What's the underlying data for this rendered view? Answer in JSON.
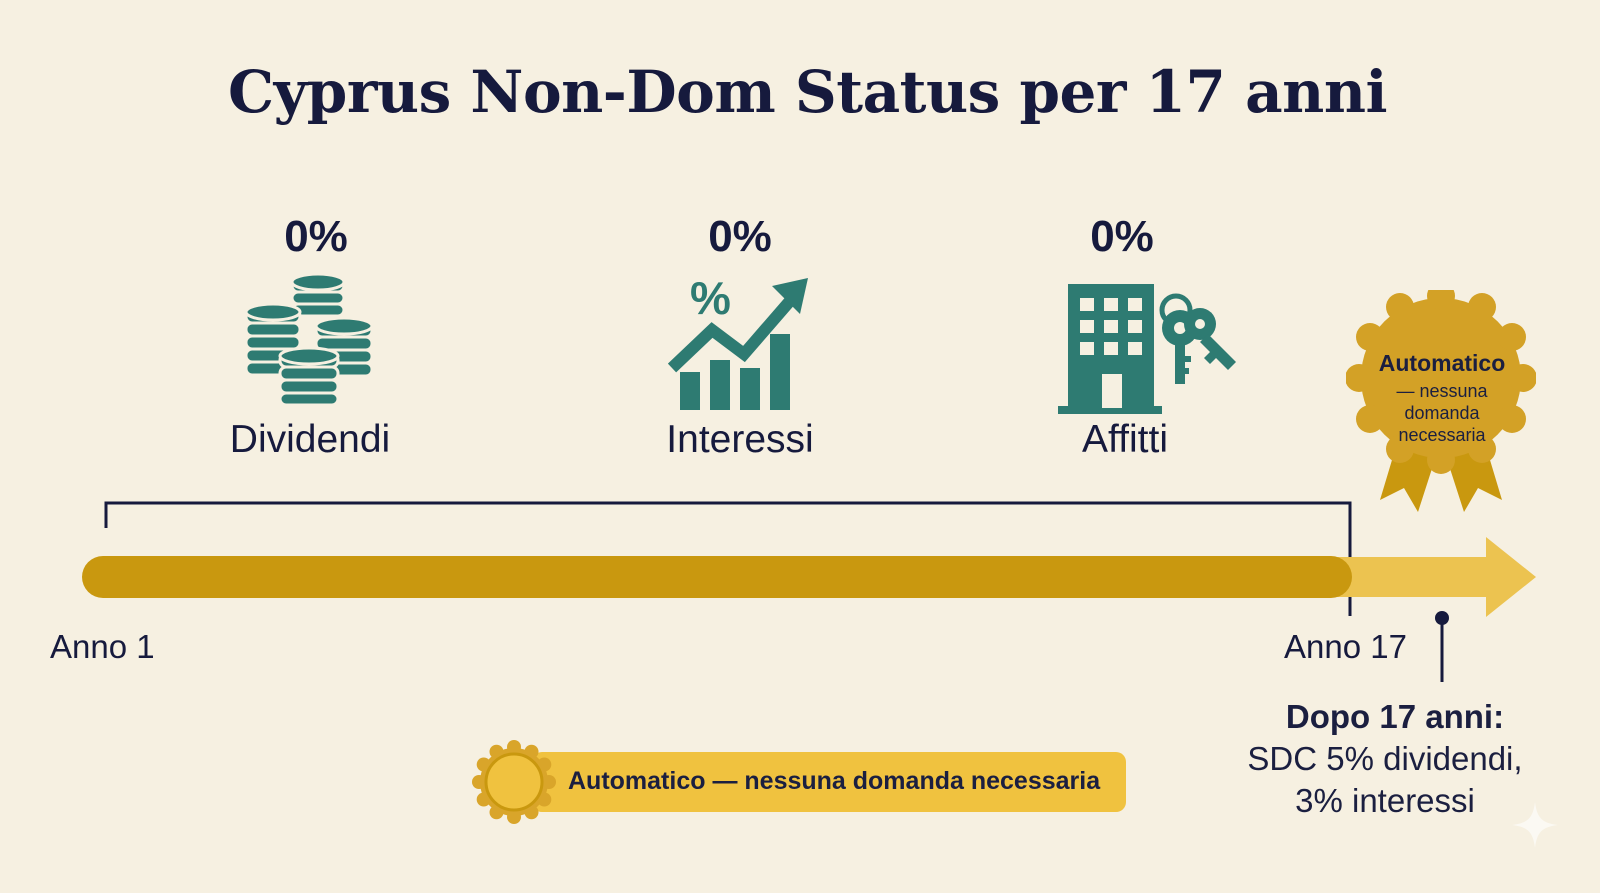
{
  "title": "Cyprus Non-Dom Status per 17 anni",
  "categories": [
    {
      "rate": "0%",
      "label": "Dividendi",
      "icon": "coin-stack-icon"
    },
    {
      "rate": "0%",
      "label": "Interessi",
      "icon": "growth-chart-icon"
    },
    {
      "rate": "0%",
      "label": "Affitti",
      "icon": "building-key-icon"
    }
  ],
  "timeline": {
    "start_label": "Anno 1",
    "end_label": "Anno 17"
  },
  "after": {
    "title": "Dopo 17 anni:",
    "line1": "SDC 5% dividendi,",
    "line2": "3% interessi"
  },
  "seal": {
    "title": "Automatico",
    "line1": "— nessuna",
    "line2": "domanda",
    "line3": "necessaria"
  },
  "banner": {
    "text": "Automatico — nessuna domanda necessaria"
  },
  "colors": {
    "background": "#f6f0e1",
    "navy": "#161a3d",
    "teal": "#2e7b72",
    "gold": "#c9980f",
    "gold_light": "#e9bf4b",
    "banner": "#f0c23f"
  }
}
